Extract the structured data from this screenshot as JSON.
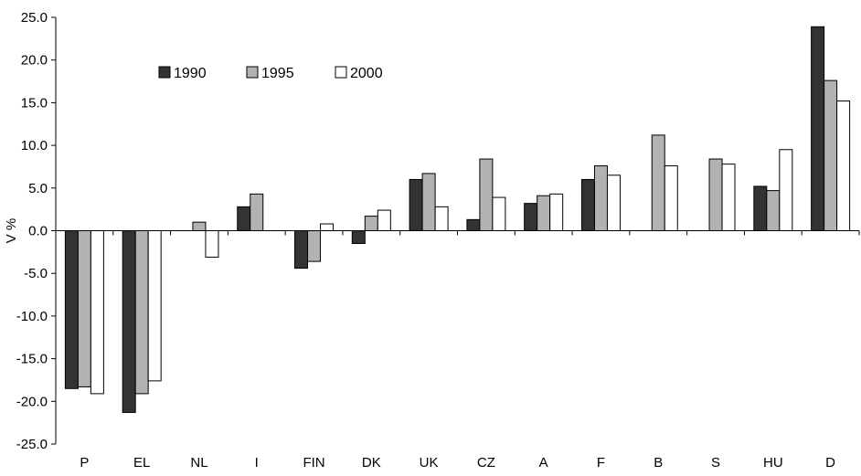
{
  "chart_data": {
    "type": "bar",
    "title": "",
    "xlabel": "",
    "ylabel": "V %",
    "ylim": [
      -25,
      25
    ],
    "ytick_step": 5,
    "grid": false,
    "legend_placement": "top-left",
    "categories": [
      "P",
      "EL",
      "NL",
      "I",
      "FIN",
      "DK",
      "UK",
      "CZ",
      "A",
      "F",
      "B",
      "S",
      "HU",
      "D"
    ],
    "series": [
      {
        "name": "1990",
        "color": "#333333",
        "values": [
          -18.5,
          -21.3,
          null,
          2.8,
          -4.4,
          -1.5,
          6.0,
          1.3,
          3.2,
          6.0,
          null,
          null,
          5.2,
          23.9
        ]
      },
      {
        "name": "1995",
        "color": "#b2b2b2",
        "values": [
          -18.3,
          -19.1,
          1.0,
          4.3,
          -3.6,
          1.7,
          6.7,
          8.4,
          4.1,
          7.6,
          11.2,
          8.4,
          4.7,
          17.6
        ]
      },
      {
        "name": "2000",
        "color": "#ffffff",
        "values": [
          -19.1,
          -17.6,
          -3.1,
          null,
          0.8,
          2.4,
          2.8,
          3.9,
          4.3,
          6.5,
          7.6,
          7.8,
          9.5,
          15.2
        ]
      }
    ]
  }
}
